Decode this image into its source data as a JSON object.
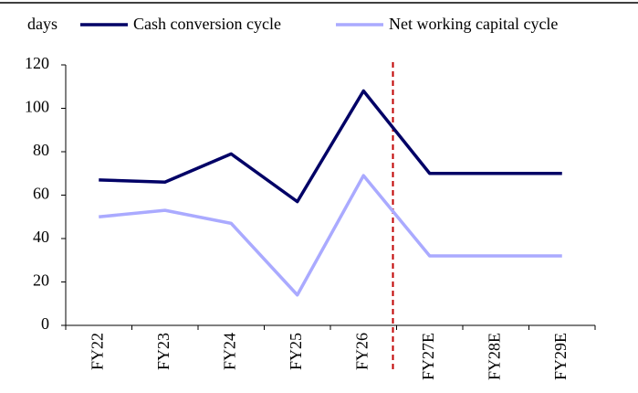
{
  "chart_data": {
    "type": "line",
    "ylabel": "days",
    "categories": [
      "FY22",
      "FY23",
      "FY24",
      "FY25",
      "FY26",
      "FY27E",
      "FY28E",
      "FY29E"
    ],
    "series": [
      {
        "name": "Cash conversion cycle",
        "color": "#000066",
        "values": [
          67,
          66,
          79,
          57,
          108,
          70,
          70,
          70
        ]
      },
      {
        "name": "Net working capital cycle",
        "color": "#aaaaff",
        "values": [
          50,
          53,
          47,
          14,
          69,
          32,
          32,
          32
        ]
      }
    ],
    "ylim": [
      0,
      120
    ],
    "yticks": [
      0,
      20,
      40,
      60,
      80,
      100,
      120
    ],
    "grid": false,
    "divider_color": "#c00000"
  }
}
